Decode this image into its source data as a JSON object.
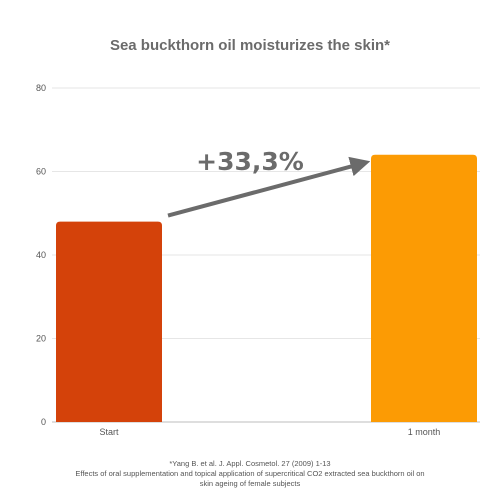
{
  "chart_data": {
    "type": "bar",
    "title": "Sea buckthorn oil moisturizes the skin*",
    "categories": [
      "Start",
      "1 month"
    ],
    "values": [
      48,
      64
    ],
    "bar_colors": [
      "#d4420a",
      "#fc9b04"
    ],
    "ylim": [
      0,
      80
    ],
    "yticks": [
      "0",
      "20",
      "40",
      "60",
      "80"
    ],
    "grid": true,
    "xlabel": "",
    "ylabel": "",
    "annotation": "+33,3%",
    "arrow_color": "#6b6b6b"
  },
  "footnote": {
    "line1": "*Yang B. et al. J. Appl. Cosmetol. 27 (2009) 1-13",
    "line2": "Effects of oral supplementation and topical application of supercritical CO2 extracted sea buckthorn oil on",
    "line3": "skin ageing of female subjects"
  }
}
